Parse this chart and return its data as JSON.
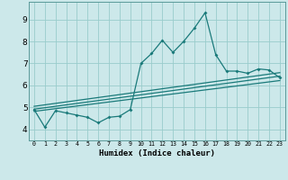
{
  "xlabel": "Humidex (Indice chaleur)",
  "xlim": [
    -0.5,
    23.5
  ],
  "ylim": [
    3.5,
    9.8
  ],
  "xticks": [
    0,
    1,
    2,
    3,
    4,
    5,
    6,
    7,
    8,
    9,
    10,
    11,
    12,
    13,
    14,
    15,
    16,
    17,
    18,
    19,
    20,
    21,
    22,
    23
  ],
  "yticks": [
    4,
    5,
    6,
    7,
    8,
    9
  ],
  "bg_color": "#cce8ea",
  "grid_color": "#99cccc",
  "line_color": "#1a7a7a",
  "main_x": [
    0,
    1,
    2,
    3,
    4,
    5,
    6,
    7,
    8,
    9,
    10,
    11,
    12,
    13,
    14,
    15,
    16,
    17,
    18,
    19,
    20,
    21,
    22,
    23
  ],
  "main_y": [
    4.9,
    4.1,
    4.85,
    4.75,
    4.65,
    4.55,
    4.3,
    4.55,
    4.6,
    4.9,
    7.0,
    7.45,
    8.05,
    7.5,
    8.0,
    8.6,
    9.3,
    7.4,
    6.65,
    6.65,
    6.55,
    6.75,
    6.7,
    6.35
  ],
  "line2_x": [
    0,
    23
  ],
  "line2_y": [
    4.82,
    6.22
  ],
  "line3_x": [
    0,
    23
  ],
  "line3_y": [
    4.92,
    6.42
  ],
  "line4_x": [
    0,
    23
  ],
  "line4_y": [
    5.05,
    6.58
  ]
}
